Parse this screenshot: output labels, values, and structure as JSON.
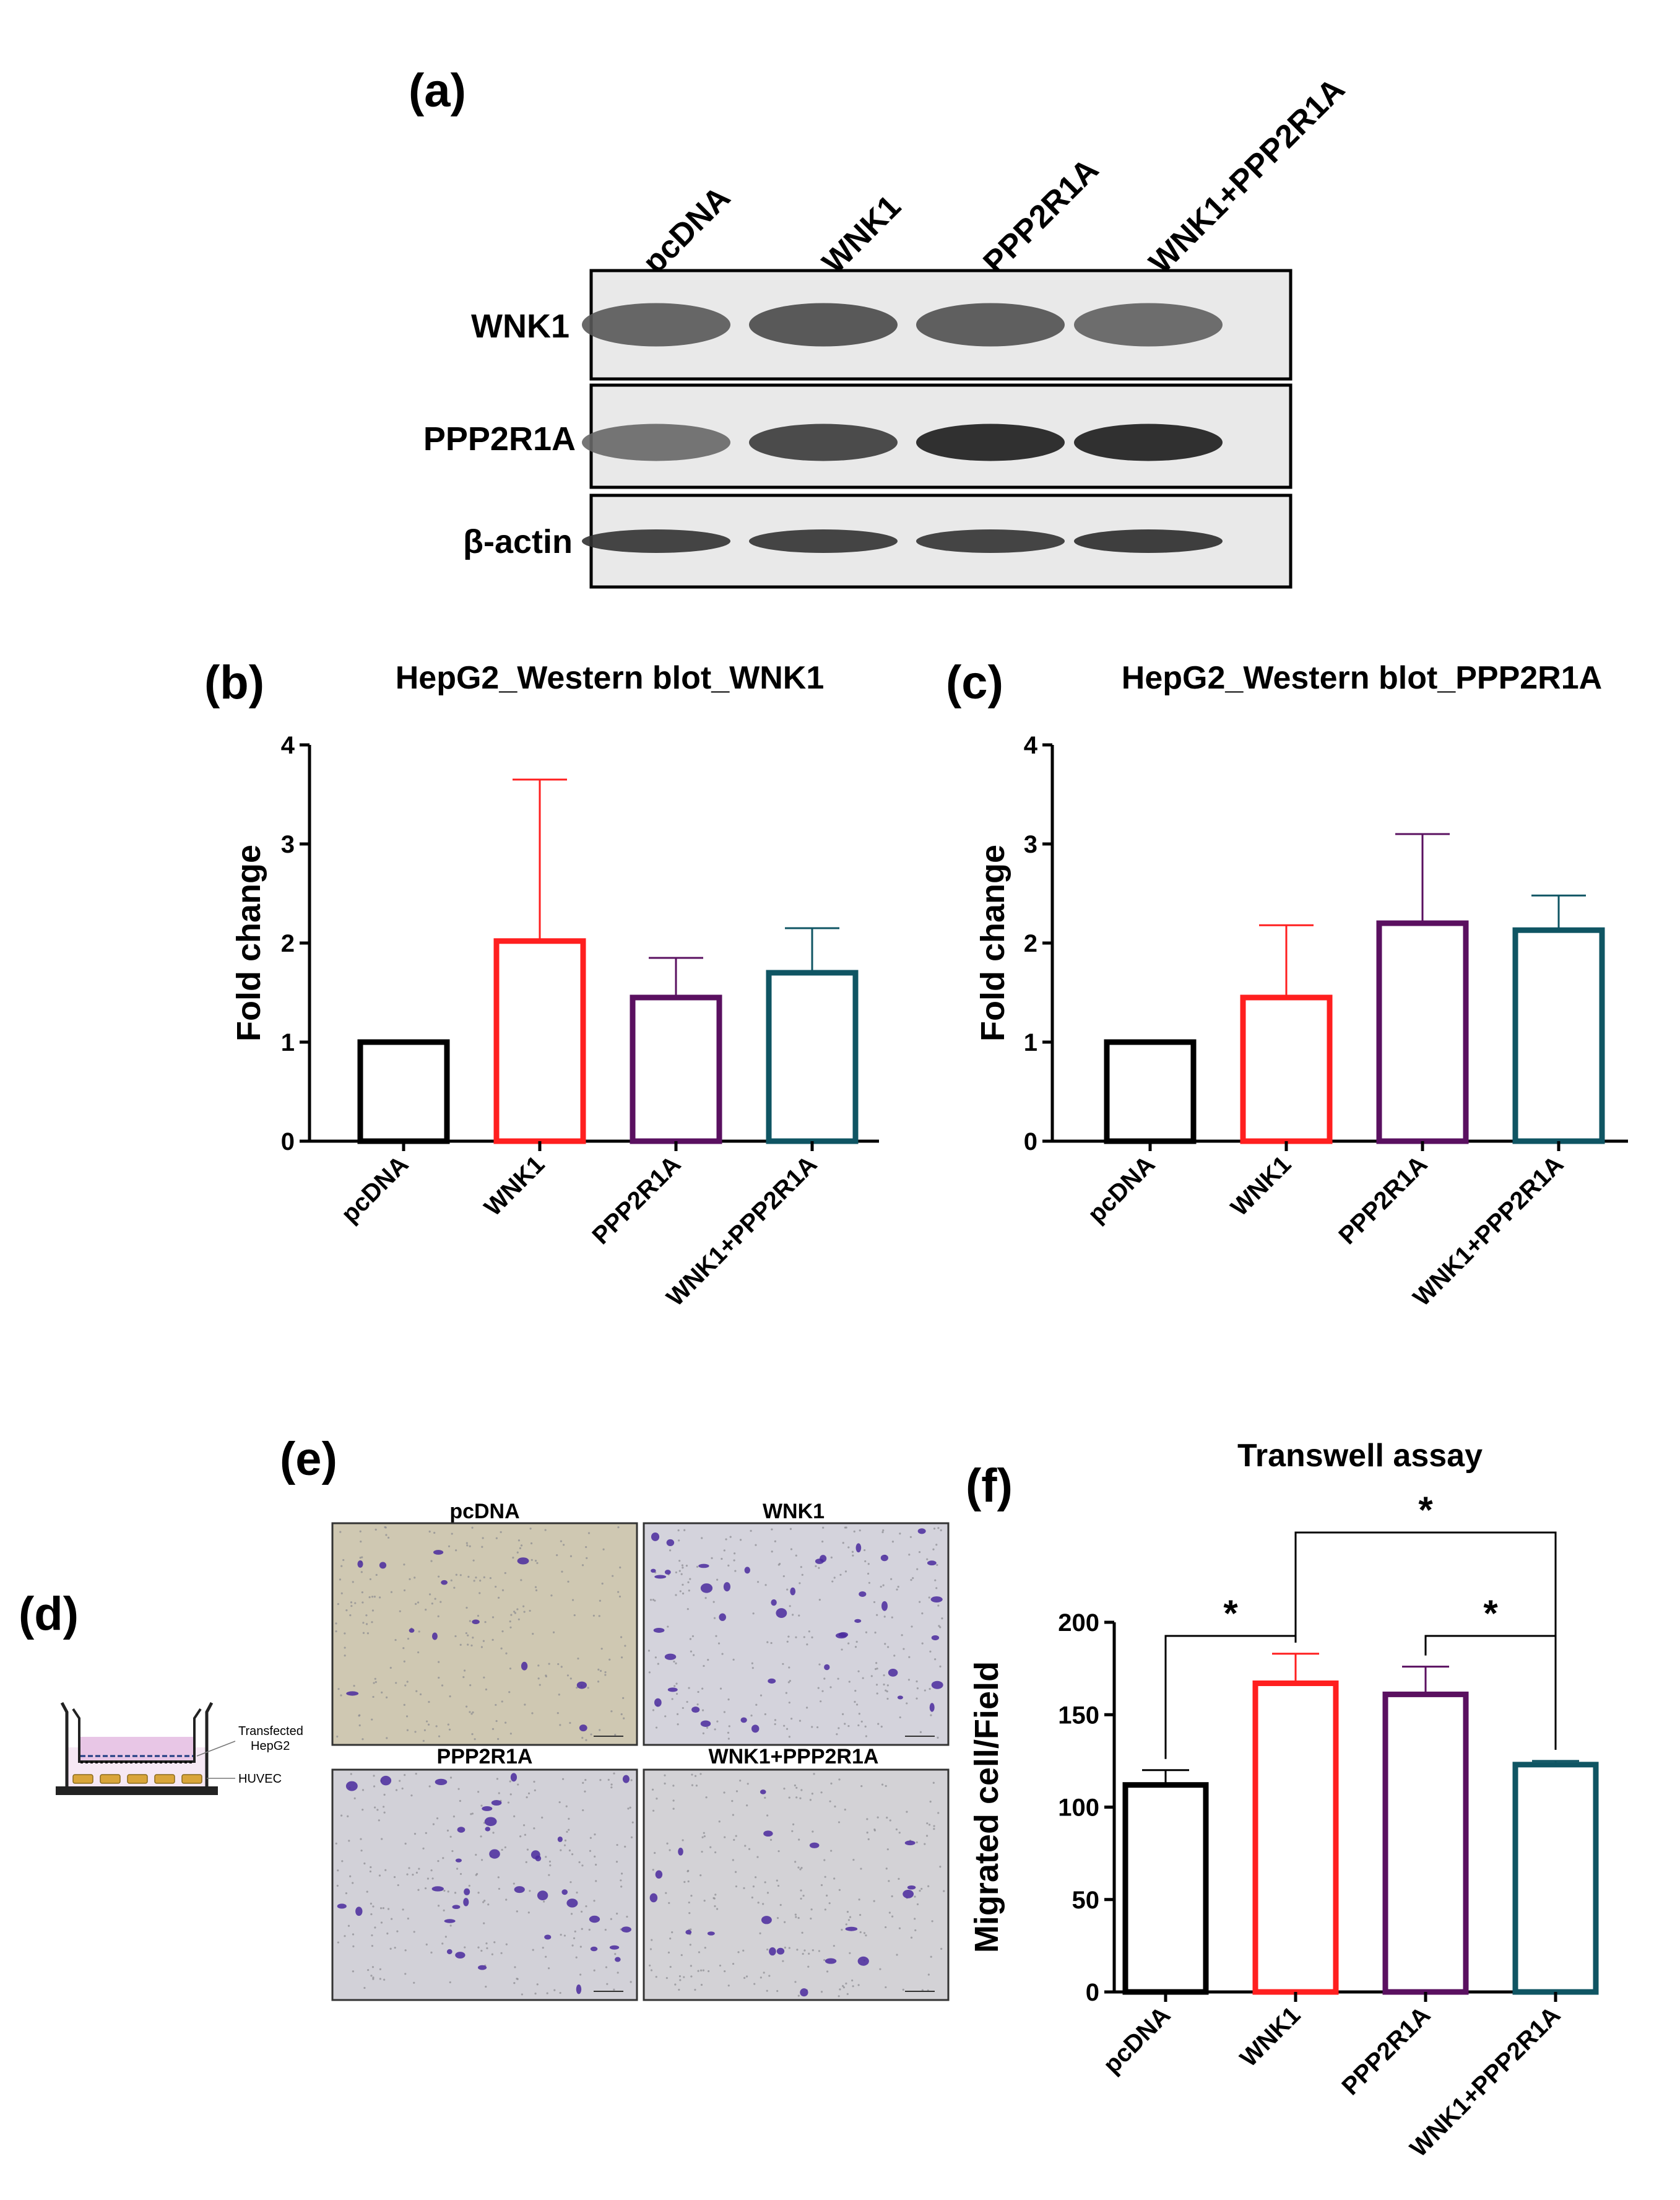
{
  "panels": {
    "a": "(a)",
    "b": "(b)",
    "c": "(c)",
    "d": "(d)",
    "e": "(e)",
    "f": "(f)"
  },
  "western_blot": {
    "lanes": [
      "pcDNA",
      "WNK1",
      "PPP2R1A",
      "WNK1+PPP2R1A"
    ],
    "rows": [
      "WNK1",
      "PPP2R1A",
      "β-actin"
    ],
    "band_intensity": [
      [
        0.55,
        0.65,
        0.6,
        0.5
      ],
      [
        0.45,
        0.75,
        0.95,
        0.95
      ],
      [
        0.8,
        0.8,
        0.8,
        0.85
      ]
    ]
  },
  "schematic": {
    "upper_label_1": "Transfected",
    "upper_label_2": "HepG2",
    "lower_label": "HUVEC"
  },
  "micrographs": {
    "labels": [
      "pcDNA",
      "WNK1",
      "PPP2R1A",
      "WNK1+PPP2R1A"
    ],
    "relative_cell_density": [
      0.3,
      1.0,
      0.9,
      0.45
    ]
  },
  "series_colors": [
    "#000000",
    "#ff1f1f",
    "#5a1060",
    "#0f5563"
  ],
  "chart_data": [
    {
      "panel": "b",
      "type": "bar",
      "title": "HepG2_Western blot_WNK1",
      "ylabel": "Fold change",
      "xlabel": "",
      "categories": [
        "pcDNA",
        "WNK1",
        "PPP2R1A",
        "WNK1+PPP2R1A"
      ],
      "values": [
        1.0,
        2.02,
        1.45,
        1.7
      ],
      "error_upper": [
        1.0,
        3.65,
        1.85,
        2.15
      ],
      "ylim": [
        0,
        4
      ],
      "yticks": [
        "0",
        "1",
        "2",
        "3",
        "4"
      ],
      "bar_style": "outline"
    },
    {
      "panel": "c",
      "type": "bar",
      "title": "HepG2_Western blot_PPP2R1A",
      "ylabel": "Fold change",
      "xlabel": "",
      "categories": [
        "pcDNA",
        "WNK1",
        "PPP2R1A",
        "WNK1+PPP2R1A"
      ],
      "values": [
        1.0,
        1.45,
        2.2,
        2.13
      ],
      "error_upper": [
        1.0,
        2.18,
        3.1,
        2.48
      ],
      "ylim": [
        0,
        4
      ],
      "yticks": [
        "0",
        "1",
        "2",
        "3",
        "4"
      ],
      "bar_style": "outline"
    },
    {
      "panel": "f",
      "type": "bar",
      "title": "Transwell assay",
      "ylabel": "Migrated cell/Field",
      "xlabel": "",
      "categories": [
        "pcDNA",
        "WNK1",
        "PPP2R1A",
        "WNK1+PPP2R1A"
      ],
      "values": [
        112,
        167,
        161,
        123
      ],
      "error_upper": [
        120,
        183,
        176,
        125
      ],
      "ylim": [
        0,
        200
      ],
      "yticks": [
        "0",
        "50",
        "100",
        "150",
        "200"
      ],
      "bar_style": "outline",
      "significance": [
        {
          "from": 0,
          "to": 1,
          "label": "*"
        },
        {
          "from": 1,
          "to": 3,
          "label": "*"
        },
        {
          "from": 2,
          "to": 3,
          "label": "*"
        }
      ]
    }
  ]
}
